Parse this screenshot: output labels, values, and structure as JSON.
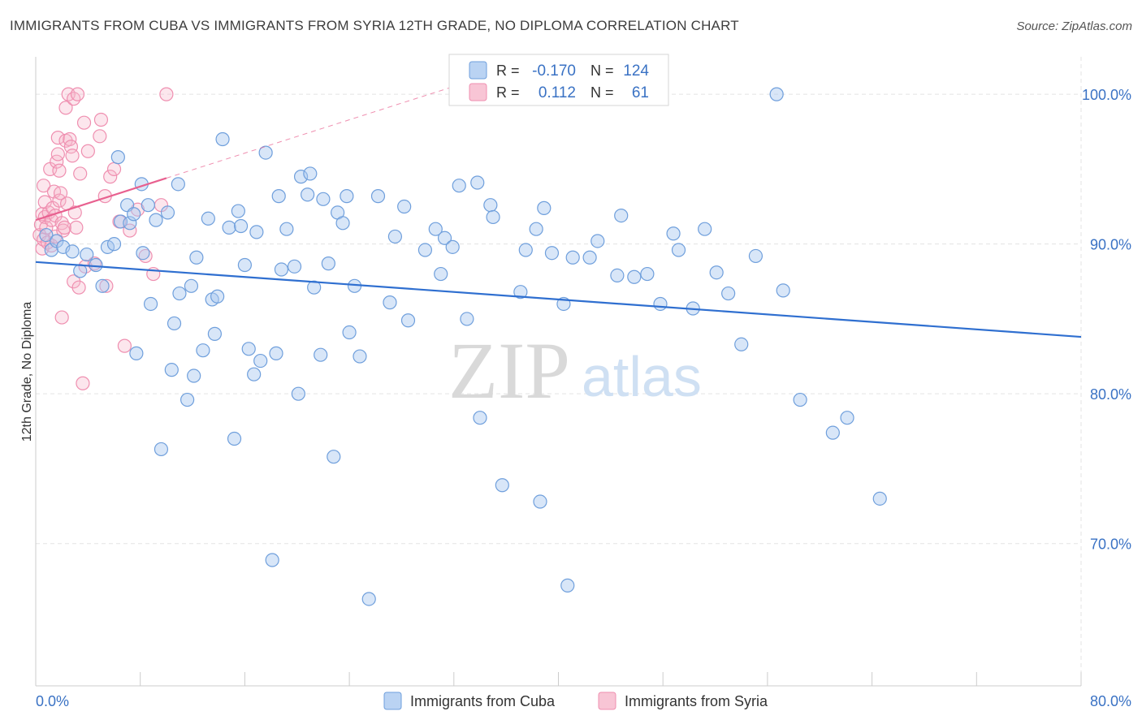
{
  "title": "IMMIGRANTS FROM CUBA VS IMMIGRANTS FROM SYRIA 12TH GRADE, NO DIPLOMA CORRELATION CHART",
  "source": "Source: ZipAtlas.com",
  "watermark": {
    "zip": "ZIP",
    "atlas": "atlas"
  },
  "colors": {
    "cuba_fill": "#a9c8f0",
    "cuba_stroke": "#6f9fdc",
    "cuba_line": "#2f6fd0",
    "syria_fill": "#f6b6cb",
    "syria_stroke": "#ef8fb0",
    "syria_line": "#e8608f",
    "tick_text": "#3a72c4",
    "grid": "#e3e3e3"
  },
  "legend_box": {
    "rows": [
      {
        "r_label": "R =",
        "r_value": "-0.170",
        "n_label": "N =",
        "n_value": "124"
      },
      {
        "r_label": "R =",
        "r_value": "0.112",
        "n_label": "N =",
        "n_value": "61"
      }
    ]
  },
  "chart_data": {
    "type": "scatter",
    "xlabel": "",
    "ylabel": "12th Grade, No Diploma",
    "xlim": [
      0,
      80
    ],
    "ylim": [
      60.5,
      102.5
    ],
    "x_tick_labels": [
      "0.0%",
      "80.0%"
    ],
    "y_ticks": [
      70,
      80,
      90,
      100
    ],
    "y_tick_labels": [
      "70.0%",
      "80.0%",
      "90.0%",
      "100.0%"
    ],
    "grid": true,
    "legend_position": "bottom",
    "series": [
      {
        "name": "Immigrants from Cuba",
        "R": -0.17,
        "N": 124,
        "trend": {
          "x": [
            0,
            80
          ],
          "y": [
            88.8,
            83.8
          ]
        },
        "points": [
          [
            0.8,
            90.6
          ],
          [
            1.2,
            89.6
          ],
          [
            1.6,
            90.2
          ],
          [
            2.1,
            89.8
          ],
          [
            2.8,
            89.5
          ],
          [
            3.4,
            88.2
          ],
          [
            3.9,
            89.3
          ],
          [
            4.6,
            88.6
          ],
          [
            5.1,
            87.2
          ],
          [
            5.5,
            89.8
          ],
          [
            6.0,
            90.0
          ],
          [
            6.3,
            95.8
          ],
          [
            6.5,
            91.5
          ],
          [
            7.0,
            92.6
          ],
          [
            7.2,
            91.4
          ],
          [
            7.5,
            92.0
          ],
          [
            7.7,
            82.7
          ],
          [
            8.1,
            94.0
          ],
          [
            8.2,
            89.4
          ],
          [
            8.6,
            92.6
          ],
          [
            8.8,
            86.0
          ],
          [
            9.2,
            91.6
          ],
          [
            9.6,
            76.3
          ],
          [
            10.1,
            92.1
          ],
          [
            10.4,
            81.6
          ],
          [
            10.6,
            84.7
          ],
          [
            10.9,
            94.0
          ],
          [
            11.0,
            86.7
          ],
          [
            11.6,
            79.6
          ],
          [
            11.9,
            87.2
          ],
          [
            12.1,
            81.2
          ],
          [
            12.3,
            89.1
          ],
          [
            12.8,
            82.9
          ],
          [
            13.2,
            91.7
          ],
          [
            13.5,
            86.3
          ],
          [
            13.7,
            84.0
          ],
          [
            13.9,
            86.5
          ],
          [
            14.3,
            97.0
          ],
          [
            14.8,
            91.1
          ],
          [
            15.2,
            77.0
          ],
          [
            15.5,
            92.2
          ],
          [
            15.7,
            91.2
          ],
          [
            16.0,
            88.6
          ],
          [
            16.3,
            83.0
          ],
          [
            16.7,
            81.3
          ],
          [
            16.9,
            90.8
          ],
          [
            17.2,
            82.2
          ],
          [
            17.6,
            96.1
          ],
          [
            18.1,
            68.9
          ],
          [
            18.4,
            82.7
          ],
          [
            18.6,
            93.2
          ],
          [
            18.8,
            88.3
          ],
          [
            19.2,
            91.0
          ],
          [
            19.8,
            88.5
          ],
          [
            20.1,
            80.0
          ],
          [
            20.3,
            94.5
          ],
          [
            20.8,
            93.3
          ],
          [
            21.0,
            94.7
          ],
          [
            21.3,
            87.1
          ],
          [
            21.8,
            82.6
          ],
          [
            22.0,
            93.0
          ],
          [
            22.4,
            88.7
          ],
          [
            22.8,
            75.8
          ],
          [
            23.1,
            92.1
          ],
          [
            23.5,
            91.4
          ],
          [
            23.8,
            93.2
          ],
          [
            24.0,
            84.1
          ],
          [
            24.4,
            87.2
          ],
          [
            24.8,
            82.5
          ],
          [
            25.5,
            66.3
          ],
          [
            26.2,
            93.2
          ],
          [
            27.1,
            86.1
          ],
          [
            27.5,
            90.5
          ],
          [
            28.2,
            92.5
          ],
          [
            28.5,
            84.9
          ],
          [
            29.8,
            89.6
          ],
          [
            30.6,
            91.0
          ],
          [
            31.0,
            88.0
          ],
          [
            31.3,
            90.4
          ],
          [
            31.9,
            89.8
          ],
          [
            32.4,
            93.9
          ],
          [
            33.0,
            85.0
          ],
          [
            33.8,
            94.1
          ],
          [
            34.0,
            78.4
          ],
          [
            34.8,
            92.6
          ],
          [
            35.0,
            91.8
          ],
          [
            35.7,
            73.9
          ],
          [
            37.1,
            86.8
          ],
          [
            37.5,
            89.6
          ],
          [
            38.3,
            91.0
          ],
          [
            38.6,
            72.8
          ],
          [
            38.9,
            92.4
          ],
          [
            39.5,
            89.4
          ],
          [
            40.4,
            86.0
          ],
          [
            40.7,
            67.2
          ],
          [
            41.1,
            89.1
          ],
          [
            42.4,
            89.1
          ],
          [
            43.0,
            90.2
          ],
          [
            44.5,
            87.9
          ],
          [
            44.8,
            91.9
          ],
          [
            45.8,
            87.8
          ],
          [
            46.8,
            88.0
          ],
          [
            47.8,
            86.0
          ],
          [
            48.8,
            90.7
          ],
          [
            49.2,
            89.6
          ],
          [
            50.3,
            85.7
          ],
          [
            51.2,
            91.0
          ],
          [
            52.1,
            88.1
          ],
          [
            53.0,
            86.7
          ],
          [
            54.0,
            83.3
          ],
          [
            55.1,
            89.2
          ],
          [
            56.7,
            100.0
          ],
          [
            57.2,
            86.9
          ],
          [
            58.5,
            79.6
          ],
          [
            61.0,
            77.4
          ],
          [
            62.1,
            78.4
          ],
          [
            64.6,
            73.0
          ]
        ]
      },
      {
        "name": "Immigrants from Syria",
        "R": 0.112,
        "N": 61,
        "trend": {
          "x": [
            0,
            10
          ],
          "y": [
            91.6,
            94.4
          ]
        },
        "trend_extension": {
          "x": [
            10,
            33
          ],
          "y": [
            94.4,
            100.8
          ]
        },
        "points": [
          [
            0.3,
            90.6
          ],
          [
            0.4,
            91.3
          ],
          [
            0.5,
            92.0
          ],
          [
            0.5,
            89.7
          ],
          [
            0.6,
            93.9
          ],
          [
            0.6,
            90.3
          ],
          [
            0.7,
            91.8
          ],
          [
            0.7,
            92.8
          ],
          [
            0.8,
            91.1
          ],
          [
            0.9,
            90.1
          ],
          [
            1.0,
            92.1
          ],
          [
            1.1,
            95.0
          ],
          [
            1.2,
            91.6
          ],
          [
            1.2,
            89.9
          ],
          [
            1.3,
            92.4
          ],
          [
            1.4,
            93.5
          ],
          [
            1.5,
            90.5
          ],
          [
            1.5,
            91.9
          ],
          [
            1.6,
            95.5
          ],
          [
            1.7,
            96.0
          ],
          [
            1.7,
            97.1
          ],
          [
            1.8,
            94.9
          ],
          [
            1.8,
            92.9
          ],
          [
            1.9,
            93.4
          ],
          [
            2.0,
            91.4
          ],
          [
            2.0,
            85.1
          ],
          [
            2.1,
            90.9
          ],
          [
            2.2,
            91.1
          ],
          [
            2.3,
            99.1
          ],
          [
            2.3,
            96.9
          ],
          [
            2.4,
            92.7
          ],
          [
            2.5,
            100.0
          ],
          [
            2.6,
            97.0
          ],
          [
            2.7,
            96.5
          ],
          [
            2.8,
            95.9
          ],
          [
            2.9,
            87.5
          ],
          [
            2.9,
            99.7
          ],
          [
            3.0,
            92.1
          ],
          [
            3.1,
            91.1
          ],
          [
            3.2,
            100.0
          ],
          [
            3.3,
            87.1
          ],
          [
            3.4,
            94.7
          ],
          [
            3.6,
            80.7
          ],
          [
            3.7,
            98.1
          ],
          [
            3.8,
            88.5
          ],
          [
            4.0,
            96.2
          ],
          [
            4.5,
            88.7
          ],
          [
            4.9,
            97.2
          ],
          [
            5.0,
            98.3
          ],
          [
            5.3,
            93.2
          ],
          [
            5.4,
            87.2
          ],
          [
            5.7,
            94.5
          ],
          [
            6.0,
            95.0
          ],
          [
            6.4,
            91.5
          ],
          [
            6.8,
            83.2
          ],
          [
            7.2,
            90.9
          ],
          [
            7.8,
            92.3
          ],
          [
            8.4,
            89.2
          ],
          [
            9.0,
            88.0
          ],
          [
            9.6,
            92.6
          ],
          [
            10.0,
            100.0
          ]
        ]
      }
    ]
  },
  "bottom_legend": [
    "Immigrants from Cuba",
    "Immigrants from Syria"
  ]
}
